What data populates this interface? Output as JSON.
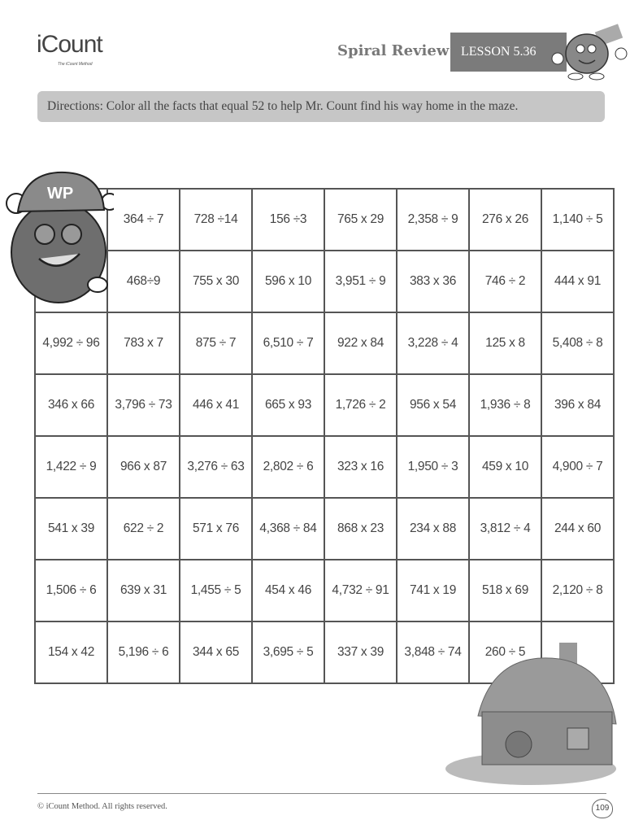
{
  "header": {
    "logo_text": "iCount",
    "logo_tagline": "The iCount Method",
    "title": "Spiral Review",
    "lesson": "LESSON 5.36"
  },
  "directions": "Directions: Color all the facts that equal 52  to help Mr. Count find his way home in the maze.",
  "mascot": {
    "cap_text": "WP"
  },
  "grid": {
    "rows": [
      [
        "",
        "364 ÷ 7",
        "728 ÷14",
        "156 ÷3",
        "765 x 29",
        "2,358 ÷ 9",
        "276 x 26",
        "1,140 ÷ 5"
      ],
      [
        "",
        "468÷9",
        "755 x 30",
        "596 x 10",
        "3,951 ÷ 9",
        "383 x 36",
        "746 ÷ 2",
        "444 x 91"
      ],
      [
        "4,992 ÷ 96",
        "783 x 7",
        "875 ÷ 7",
        "6,510 ÷ 7",
        "922 x 84",
        "3,228 ÷ 4",
        "125 x 8",
        "5,408 ÷ 8"
      ],
      [
        "346 x 66",
        "3,796 ÷ 73",
        "446 x 41",
        "665 x 93",
        "1,726 ÷ 2",
        "956 x 54",
        "1,936 ÷ 8",
        "396 x 84"
      ],
      [
        "1,422 ÷ 9",
        "966 x 87",
        "3,276 ÷ 63",
        "2,802 ÷ 6",
        "323 x 16",
        "1,950 ÷ 3",
        "459 x 10",
        "4,900 ÷ 7"
      ],
      [
        "541 x 39",
        "622 ÷ 2",
        "571 x 76",
        "4,368 ÷ 84",
        "868 x 23",
        "234 x 88",
        "3,812 ÷ 4",
        "244 x 60"
      ],
      [
        "1,506 ÷ 6",
        "639 x 31",
        "1,455 ÷ 5",
        "454 x 46",
        "4,732 ÷ 91",
        "741 x 19",
        "518 x 69",
        "2,120 ÷ 8"
      ],
      [
        "154 x 42",
        "5,196 ÷ 6",
        "344 x 65",
        "3,695 ÷ 5",
        "337 x 39",
        "3,848 ÷ 74",
        "260 ÷ 5",
        ""
      ]
    ]
  },
  "footer": {
    "copyright": "© iCount Method. All rights reserved.",
    "page_number": "109"
  }
}
